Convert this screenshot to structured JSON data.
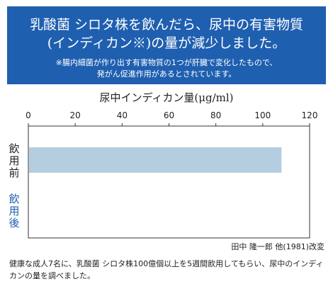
{
  "banner": {
    "title_line1": "乳酸菌 シロタ株を飲んだら、尿中の有害物質",
    "title_line2": "(インディカン※)の量が減少しました。",
    "note_line1": "※腸内細菌が作り出す有害物質の1つが肝臓で変化したもので、",
    "note_line2": "発がん促進作用があるとされています。",
    "background_color": "#1f5fb0"
  },
  "chart_data": {
    "type": "bar",
    "orientation": "horizontal",
    "title": "尿中インディカン量(μg/ml)",
    "categories": [
      "飲用前",
      "飲用後"
    ],
    "category_colors": [
      "#222222",
      "#1f5fb0"
    ],
    "values": [
      108,
      0
    ],
    "bar_color": "#b4cee0",
    "xlim": [
      0,
      120
    ],
    "xticks": [
      0,
      20,
      40,
      60,
      80,
      100,
      120
    ],
    "xtick_labels": [
      "0",
      "20",
      "40",
      "60",
      "80",
      "100",
      "120"
    ],
    "xaxis_position": "top",
    "grid": false,
    "legend": "none"
  },
  "citation": "田中 隆一郎 他(1981)改変",
  "footnote": "健康な成人7名に、乳酸菌 シロタ株100億個以上を5週間飲用してもらい、尿中のインディカンの量を調べました。"
}
